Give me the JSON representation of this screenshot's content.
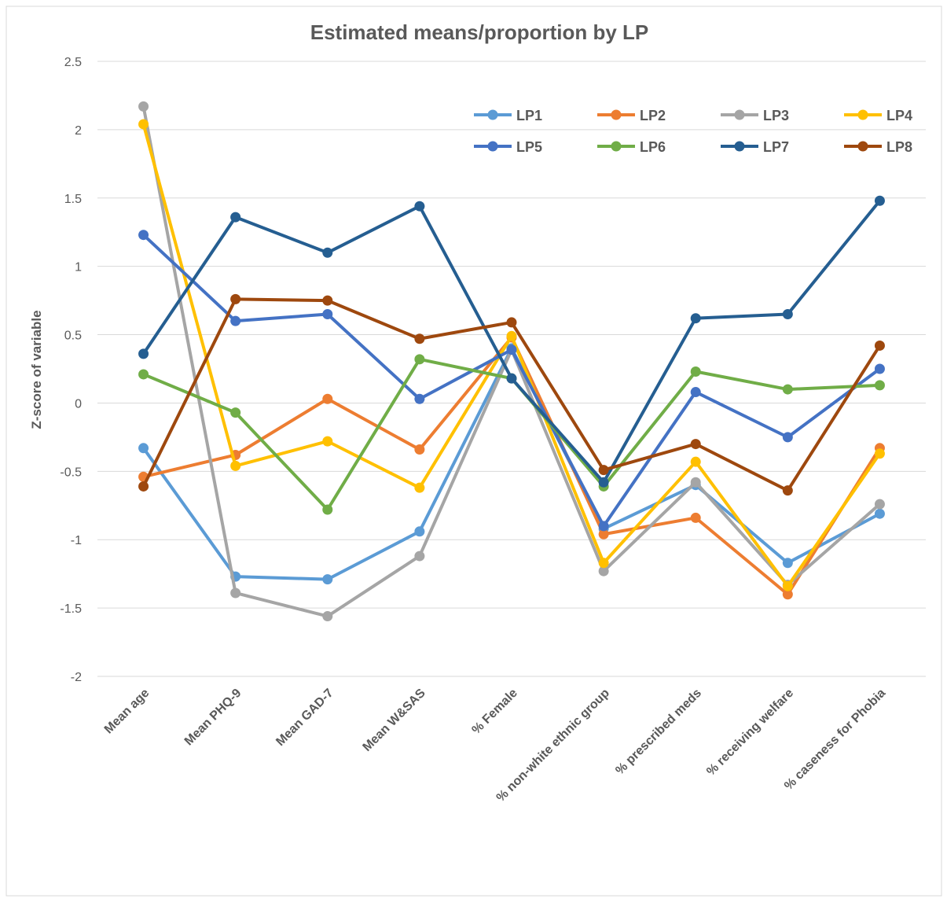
{
  "chart_data": {
    "type": "line",
    "title": "Estimated means/proportion by LP",
    "y_label": "Z-score of  variable",
    "categories": [
      "Mean age",
      "Mean PHQ-9",
      "Mean GAD-7",
      "Mean W&SAS",
      "% Female",
      "% non-white ethnic group",
      "% prescribed meds",
      "% receiving welfare",
      "% caseness for Phobia"
    ],
    "series": [
      {
        "name": "LP1",
        "color": "#5b9bd5",
        "values": [
          -0.33,
          -1.27,
          -1.29,
          -0.94,
          0.4,
          -0.92,
          -0.6,
          -1.17,
          -0.81
        ]
      },
      {
        "name": "LP2",
        "color": "#ed7d31",
        "values": [
          -0.54,
          -0.38,
          0.03,
          -0.34,
          0.48,
          -0.96,
          -0.84,
          -1.4,
          -0.33
        ]
      },
      {
        "name": "LP3",
        "color": "#a5a5a5",
        "values": [
          2.17,
          -1.39,
          -1.56,
          -1.12,
          0.39,
          -1.23,
          -0.58,
          -1.33,
          -0.74
        ]
      },
      {
        "name": "LP4",
        "color": "#ffc000",
        "values": [
          2.04,
          -0.46,
          -0.28,
          -0.62,
          0.49,
          -1.17,
          -0.43,
          -1.34,
          -0.37
        ]
      },
      {
        "name": "LP5",
        "color": "#4472c4",
        "values": [
          1.23,
          0.6,
          0.65,
          0.03,
          0.39,
          -0.9,
          0.08,
          -0.25,
          0.25
        ]
      },
      {
        "name": "LP6",
        "color": "#70ad47",
        "values": [
          0.21,
          -0.07,
          -0.78,
          0.32,
          0.18,
          -0.61,
          0.23,
          0.1,
          0.13
        ]
      },
      {
        "name": "LP7",
        "color": "#255e91",
        "values": [
          0.36,
          1.36,
          1.1,
          1.44,
          0.18,
          -0.58,
          0.62,
          0.65,
          1.48
        ]
      },
      {
        "name": "LP8",
        "color": "#9e480e",
        "values": [
          -0.61,
          0.76,
          0.75,
          0.47,
          0.59,
          -0.49,
          -0.3,
          -0.64,
          0.42
        ]
      }
    ],
    "ylim": [
      -2,
      2.5
    ],
    "yticks": [
      -2,
      -1.5,
      -1,
      -0.5,
      0,
      0.5,
      1,
      1.5,
      2,
      2.5
    ],
    "grid": true,
    "legend": "top-right"
  }
}
